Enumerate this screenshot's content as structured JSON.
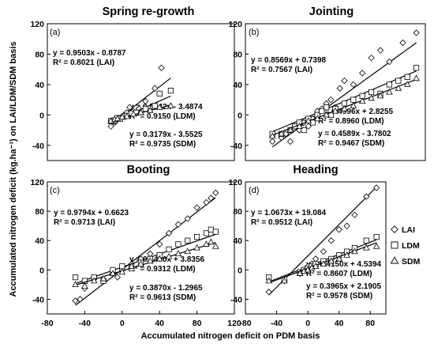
{
  "figure": {
    "y_axis_label": "Accumulated nitrogen deficit (kg.ha⁻¹) on LAI/LDM/SDM basis",
    "x_axis_label": "Accumulated nitrogen deficit on PDM basis",
    "legend": [
      {
        "label": "LAI",
        "marker": "diamond"
      },
      {
        "label": "LDM",
        "marker": "square"
      },
      {
        "label": "SDM",
        "marker": "triangle"
      }
    ]
  },
  "chart_data": [
    {
      "type": "scatter",
      "panel": "(a)",
      "title": "Spring re-growth",
      "xlim": [
        -80,
        120
      ],
      "ylim": [
        -60,
        120
      ],
      "xticks": [
        "-80",
        "-40",
        "0",
        "40",
        "80",
        "120"
      ],
      "yticks": [
        "-40",
        "0",
        "40",
        "80",
        "120"
      ],
      "series": [
        {
          "name": "LAI",
          "marker": "diamond",
          "x": [
            -12,
            -10,
            -8,
            -5,
            -2,
            2,
            5,
            8,
            12,
            18,
            25,
            35,
            42
          ],
          "y": [
            -15,
            -8,
            -10,
            -6,
            -4,
            0,
            3,
            10,
            5,
            8,
            18,
            35,
            62
          ],
          "fit": {
            "slope": 0.9503,
            "intercept": -0.8787,
            "range": [
              -12,
              52
            ]
          }
        },
        {
          "name": "LDM",
          "marker": "square",
          "x": [
            -12,
            -10,
            -8,
            -5,
            -2,
            2,
            5,
            10,
            15,
            25,
            35,
            40,
            52
          ],
          "y": [
            -8,
            -8,
            -7,
            -4,
            -5,
            -2,
            -1,
            2,
            3,
            8,
            12,
            28,
            32
          ],
          "fit": {
            "slope": 0.5442,
            "intercept": -3.4874,
            "range": [
              -12,
              52
            ]
          }
        },
        {
          "name": "SDM",
          "marker": "triangle",
          "x": [
            -12,
            -8,
            -5,
            0,
            5,
            12,
            20,
            30,
            40,
            52
          ],
          "y": [
            -8,
            -6,
            -5,
            -3,
            -2,
            1,
            3,
            6,
            10,
            12
          ],
          "fit": {
            "slope": 0.3179,
            "intercept": -3.5525,
            "range": [
              -12,
              52
            ]
          }
        }
      ],
      "equations": [
        {
          "line1": "y = 0.9503x - 0.8787",
          "line2": "R² = 0.8021 (LAI)"
        },
        {
          "line1": "y = 0.5442x - 3.4874",
          "line2": "R² = 0.9150 (LDM)"
        },
        {
          "line1": "y = 0.3179x - 3.5525",
          "line2": "R² = 0.9735 (SDM)"
        }
      ]
    },
    {
      "type": "scatter",
      "panel": "(b)",
      "title": "Jointing",
      "xlim": [
        -80,
        120
      ],
      "ylim": [
        -60,
        120
      ],
      "xticks": [
        "-80",
        "-40",
        "0",
        "40",
        "80",
        "120"
      ],
      "yticks": [
        "-40",
        "0",
        "40",
        "80",
        "120"
      ],
      "series": [
        {
          "name": "LAI",
          "marker": "diamond",
          "x": [
            -50,
            -40,
            -35,
            -30,
            -25,
            -20,
            -15,
            -10,
            -5,
            0,
            5,
            10,
            15,
            20,
            25,
            30,
            40,
            50,
            60,
            70,
            80,
            95,
            110
          ],
          "y": [
            -35,
            -30,
            -25,
            -35,
            -15,
            -20,
            -10,
            -15,
            -5,
            5,
            8,
            15,
            20,
            10,
            35,
            45,
            40,
            55,
            75,
            85,
            70,
            95,
            108
          ],
          "fit": {
            "slope": 0.8569,
            "intercept": 0.7398,
            "range": [
              -50,
              110
            ]
          }
        },
        {
          "name": "LDM",
          "marker": "square",
          "x": [
            -50,
            -40,
            -30,
            -25,
            -20,
            -15,
            -10,
            -5,
            0,
            5,
            10,
            15,
            20,
            30,
            40,
            50,
            60,
            70,
            80,
            90,
            100,
            110
          ],
          "y": [
            -25,
            -25,
            -20,
            -15,
            -10,
            -20,
            -5,
            -10,
            0,
            5,
            10,
            0,
            8,
            15,
            20,
            25,
            30,
            28,
            40,
            45,
            50,
            62
          ],
          "fit": {
            "slope": 0.4996,
            "intercept": 2.8255,
            "range": [
              -50,
              110
            ]
          }
        },
        {
          "name": "SDM",
          "marker": "triangle",
          "x": [
            -50,
            -40,
            -30,
            -20,
            -10,
            0,
            10,
            20,
            30,
            40,
            50,
            60,
            70,
            80,
            90,
            100,
            110
          ],
          "y": [
            -28,
            -25,
            -20,
            -15,
            -8,
            -5,
            0,
            5,
            8,
            12,
            18,
            22,
            25,
            30,
            35,
            40,
            48
          ],
          "fit": {
            "slope": 0.4589,
            "intercept": -3.7802,
            "range": [
              -50,
              110
            ]
          }
        }
      ],
      "equations": [
        {
          "line1": "y = 0.8569x + 0.7398",
          "line2": "R² = 0.7567 (LAI)"
        },
        {
          "line1": "y = 0.4996x + 2.8255",
          "line2": "R² = 0.8960 (LDM)"
        },
        {
          "line1": "y = 0.4589x - 3.7802",
          "line2": "R² = 0.9467 (SDM)"
        }
      ]
    },
    {
      "type": "scatter",
      "panel": "(c)",
      "title": "Booting",
      "xlim": [
        -80,
        120
      ],
      "ylim": [
        -60,
        120
      ],
      "xticks": [
        "-80",
        "-40",
        "0",
        "40",
        "80",
        "120"
      ],
      "yticks": [
        "-40",
        "0",
        "40",
        "80",
        "120"
      ],
      "series": [
        {
          "name": "LAI",
          "marker": "diamond",
          "x": [
            -50,
            -45,
            -40,
            -20,
            -10,
            -5,
            0,
            10,
            20,
            30,
            40,
            50,
            60,
            70,
            80,
            90,
            95,
            100
          ],
          "y": [
            -42,
            -40,
            -25,
            -15,
            -5,
            -10,
            0,
            8,
            15,
            22,
            35,
            50,
            62,
            70,
            85,
            92,
            98,
            105
          ],
          "fit": {
            "slope": 0.9794,
            "intercept": 0.6623,
            "range": [
              -50,
              100
            ]
          }
        },
        {
          "name": "LDM",
          "marker": "square",
          "x": [
            -50,
            -40,
            -30,
            -20,
            -10,
            0,
            10,
            20,
            30,
            40,
            50,
            60,
            70,
            80,
            90,
            95,
            100
          ],
          "y": [
            -10,
            -15,
            -10,
            -15,
            0,
            5,
            2,
            10,
            15,
            20,
            28,
            35,
            40,
            45,
            50,
            55,
            52
          ],
          "fit": {
            "slope": 0.447,
            "intercept": 3.8356,
            "range": [
              -50,
              100
            ]
          }
        },
        {
          "name": "SDM",
          "marker": "triangle",
          "x": [
            -50,
            -40,
            -30,
            -20,
            -10,
            0,
            10,
            20,
            30,
            40,
            50,
            60,
            70,
            80,
            90,
            95,
            100
          ],
          "y": [
            -20,
            -22,
            -15,
            -12,
            -5,
            -3,
            5,
            8,
            12,
            15,
            18,
            22,
            25,
            30,
            35,
            38,
            32
          ],
          "fit": {
            "slope": 0.387,
            "intercept": -1.2965,
            "range": [
              -50,
              100
            ]
          }
        }
      ],
      "equations": [
        {
          "line1": "y = 0.9794x + 0.6623",
          "line2": "R² = 0.9713 (LAI)"
        },
        {
          "line1": "y = 0.4470x + 3.8356",
          "line2": "R² = 0.9312 (LDM)"
        },
        {
          "line1": "y = 0.3870x - 1.2965",
          "line2": "R² = 0.9613 (SDM)"
        }
      ]
    },
    {
      "type": "scatter",
      "panel": "(d)",
      "title": "Heading",
      "xlim": [
        -80,
        120
      ],
      "ylim": [
        -60,
        120
      ],
      "xticks": [
        "-80",
        "-40",
        "0",
        "40",
        "80",
        "120"
      ],
      "yticks": [
        "-40",
        "0",
        "40",
        "80",
        "120"
      ],
      "series": [
        {
          "name": "LAI",
          "marker": "diamond",
          "x": [
            -50,
            -30,
            -10,
            -5,
            0,
            5,
            10,
            20,
            30,
            40,
            50,
            60,
            75,
            88
          ],
          "y": [
            -30,
            -15,
            -5,
            0,
            5,
            8,
            15,
            25,
            40,
            55,
            60,
            75,
            100,
            112
          ],
          "fit": {
            "slope": 1.0673,
            "intercept": 19.084,
            "range": [
              -50,
              88
            ]
          }
        },
        {
          "name": "LDM",
          "marker": "square",
          "x": [
            -50,
            -30,
            -10,
            -5,
            0,
            5,
            10,
            20,
            30,
            40,
            50,
            60,
            75,
            88
          ],
          "y": [
            -10,
            -12,
            -3,
            0,
            2,
            5,
            8,
            12,
            15,
            20,
            25,
            30,
            40,
            45
          ],
          "fit": {
            "slope": 0.415,
            "intercept": 4.5394,
            "range": [
              -50,
              88
            ]
          }
        },
        {
          "name": "SDM",
          "marker": "triangle",
          "x": [
            -50,
            -30,
            -10,
            -5,
            0,
            5,
            10,
            20,
            30,
            40,
            50,
            60,
            75,
            88
          ],
          "y": [
            -15,
            -15,
            -5,
            -2,
            0,
            3,
            5,
            8,
            12,
            15,
            20,
            25,
            30,
            32
          ],
          "fit": {
            "slope": 0.3965,
            "intercept": 2.1905,
            "range": [
              -50,
              88
            ]
          }
        }
      ],
      "equations": [
        {
          "line1": "y = 1.0673x + 19.084",
          "line2": "R² = 0.9512 (LAI)"
        },
        {
          "line1": "y = 0.4150x + 4.5394",
          "line2": "R² = 0.8607 (LDM)"
        },
        {
          "line1": "y = 0.3965x + 2.1905",
          "line2": "R² = 0.9578 (SDM)"
        }
      ]
    }
  ]
}
